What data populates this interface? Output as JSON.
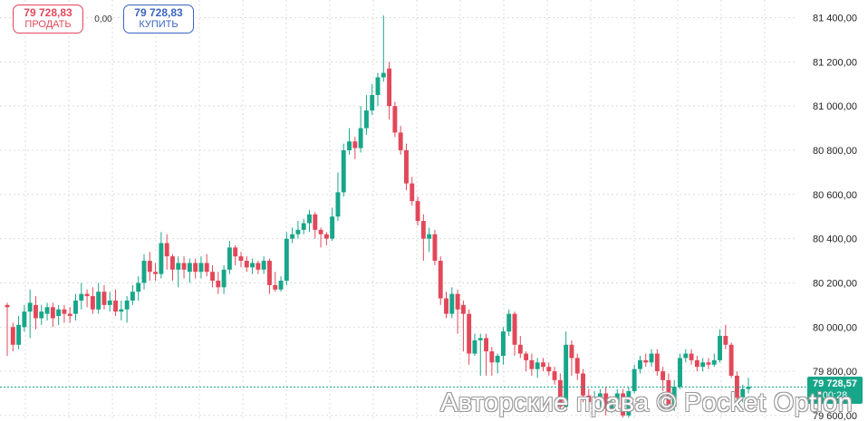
{
  "trade_panel": {
    "sell_price": "79 728,83",
    "sell_label": "ПРОДАТЬ",
    "spread": "0,00",
    "buy_price": "79 728,83",
    "buy_label": "КУПИТЬ"
  },
  "current_price": {
    "value": "79 728,57",
    "timer": "00:28"
  },
  "watermark": "Авторские права © Pocket Option",
  "colors": {
    "up": "#17a689",
    "down": "#e2485a",
    "grid": "#dcdcdc",
    "sell": "#e2485a",
    "buy": "#3a64c2"
  },
  "chart_data": {
    "type": "candlestick",
    "y_ticks": [
      "81 400,00",
      "81 200,00",
      "81 000,00",
      "80 800,00",
      "80 600,00",
      "80 400,00",
      "80 200,00",
      "80 000,00",
      "79 800,00",
      "79 600,00"
    ],
    "y_tick_values": [
      81400,
      81200,
      81000,
      80800,
      80600,
      80400,
      80200,
      80000,
      79800,
      79600
    ],
    "ylim": [
      79575,
      81480
    ],
    "grid": true,
    "current_price": 79728.57,
    "candles": [
      [
        80100,
        80090,
        80110,
        79870
      ],
      [
        80000,
        79920,
        80020,
        79890
      ],
      [
        79920,
        80010,
        80050,
        79900
      ],
      [
        80000,
        80070,
        80100,
        79980
      ],
      [
        80070,
        80110,
        80170,
        79950
      ],
      [
        80100,
        80040,
        80140,
        79990
      ],
      [
        80040,
        80070,
        80100,
        80010
      ],
      [
        80060,
        80090,
        80110,
        80030
      ],
      [
        80090,
        80040,
        80110,
        80000
      ],
      [
        80050,
        80080,
        80100,
        80010
      ],
      [
        80080,
        80060,
        80100,
        80020
      ],
      [
        80060,
        80050,
        80090,
        80020
      ],
      [
        80060,
        80120,
        80150,
        80030
      ],
      [
        80120,
        80150,
        80200,
        80080
      ],
      [
        80150,
        80140,
        80170,
        80090
      ],
      [
        80140,
        80080,
        80180,
        80060
      ],
      [
        80080,
        80160,
        80200,
        80060
      ],
      [
        80160,
        80100,
        80190,
        80080
      ],
      [
        80100,
        80120,
        80160,
        80070
      ],
      [
        80120,
        80070,
        80170,
        80050
      ],
      [
        80070,
        80080,
        80120,
        80030
      ],
      [
        80080,
        80120,
        80140,
        80020
      ],
      [
        80120,
        80160,
        80190,
        80100
      ],
      [
        80160,
        80200,
        80230,
        80120
      ],
      [
        80200,
        80300,
        80330,
        80170
      ],
      [
        80300,
        80250,
        80340,
        80210
      ],
      [
        80250,
        80240,
        80290,
        80210
      ],
      [
        80240,
        80380,
        80430,
        80220
      ],
      [
        80380,
        80320,
        80420,
        80260
      ],
      [
        80320,
        80260,
        80330,
        80210
      ],
      [
        80260,
        80290,
        80320,
        80180
      ],
      [
        80290,
        80260,
        80320,
        80220
      ],
      [
        80250,
        80290,
        80310,
        80200
      ],
      [
        80290,
        80250,
        80310,
        80220
      ],
      [
        80250,
        80290,
        80320,
        80220
      ],
      [
        80290,
        80250,
        80330,
        80230
      ],
      [
        80250,
        80210,
        80280,
        80180
      ],
      [
        80210,
        80180,
        80250,
        80150
      ],
      [
        80180,
        80260,
        80280,
        80150
      ],
      [
        80260,
        80360,
        80390,
        80240
      ],
      [
        80360,
        80320,
        80370,
        80280
      ],
      [
        80320,
        80300,
        80340,
        80270
      ],
      [
        80300,
        80270,
        80320,
        80250
      ],
      [
        80270,
        80290,
        80310,
        80240
      ],
      [
        80290,
        80260,
        80300,
        80240
      ],
      [
        80260,
        80300,
        80320,
        80240
      ],
      [
        80300,
        80190,
        80310,
        80150
      ],
      [
        80190,
        80170,
        80250,
        80160
      ],
      [
        80170,
        80210,
        80230,
        80160
      ],
      [
        80210,
        80400,
        80430,
        80190
      ],
      [
        80400,
        80420,
        80450,
        80380
      ],
      [
        80420,
        80440,
        80480,
        80400
      ],
      [
        80440,
        80470,
        80490,
        80420
      ],
      [
        80470,
        80510,
        80530,
        80430
      ],
      [
        80510,
        80440,
        80520,
        80400
      ],
      [
        80440,
        80420,
        80450,
        80360
      ],
      [
        80420,
        80400,
        80430,
        80370
      ],
      [
        80400,
        80500,
        80540,
        80390
      ],
      [
        80500,
        80610,
        80700,
        80480
      ],
      [
        80610,
        80800,
        80830,
        80590
      ],
      [
        80800,
        80840,
        80900,
        80780
      ],
      [
        80840,
        80810,
        80860,
        80760
      ],
      [
        80810,
        80900,
        81000,
        80790
      ],
      [
        80900,
        80980,
        81050,
        80870
      ],
      [
        80980,
        81050,
        81100,
        80960
      ],
      [
        81050,
        81130,
        81150,
        81000
      ],
      [
        81130,
        81150,
        81410,
        81110
      ],
      [
        81170,
        81000,
        81200,
        80940
      ],
      [
        81000,
        80880,
        81020,
        80860
      ],
      [
        80880,
        80800,
        80910,
        80780
      ],
      [
        80800,
        80650,
        80830,
        80620
      ],
      [
        80650,
        80570,
        80680,
        80550
      ],
      [
        80570,
        80480,
        80590,
        80460
      ],
      [
        80480,
        80400,
        80510,
        80300
      ],
      [
        80400,
        80420,
        80450,
        80340
      ],
      [
        80420,
        80300,
        80440,
        80280
      ],
      [
        80300,
        80130,
        80320,
        80100
      ],
      [
        80130,
        80060,
        80160,
        80040
      ],
      [
        80060,
        80150,
        80180,
        80040
      ],
      [
        80150,
        80080,
        80170,
        79970
      ],
      [
        80100,
        80060,
        80120,
        79890
      ],
      [
        80060,
        79880,
        80080,
        79830
      ],
      [
        79880,
        79940,
        79970,
        79870
      ],
      [
        79940,
        79950,
        79970,
        79780
      ],
      [
        79950,
        79890,
        79970,
        79780
      ],
      [
        79890,
        79840,
        79910,
        79780
      ],
      [
        79840,
        79870,
        79880,
        79790
      ],
      [
        79870,
        79980,
        80000,
        79830
      ],
      [
        79980,
        80060,
        80080,
        79960
      ],
      [
        80060,
        79920,
        80070,
        79870
      ],
      [
        79920,
        79880,
        79960,
        79860
      ],
      [
        79880,
        79850,
        79890,
        79800
      ],
      [
        79850,
        79810,
        79880,
        79780
      ],
      [
        79810,
        79840,
        79860,
        79770
      ],
      [
        79840,
        79820,
        79860,
        79800
      ],
      [
        79820,
        79800,
        79840,
        79780
      ],
      [
        79800,
        79760,
        79820,
        79740
      ],
      [
        79760,
        79640,
        79790,
        79620
      ],
      [
        79640,
        79920,
        79980,
        79620
      ],
      [
        79920,
        79860,
        79940,
        79780
      ],
      [
        79860,
        79790,
        79880,
        79760
      ],
      [
        79790,
        79690,
        79810,
        79660
      ],
      [
        79690,
        79660,
        79720,
        79630
      ],
      [
        79660,
        79680,
        79710,
        79620
      ],
      [
        79680,
        79700,
        79720,
        79640
      ],
      [
        79700,
        79630,
        79730,
        79600
      ],
      [
        79630,
        79650,
        79680,
        79610
      ],
      [
        79650,
        79700,
        79720,
        79630
      ],
      [
        79700,
        79600,
        79720,
        79590
      ],
      [
        79600,
        79710,
        79730,
        79590
      ],
      [
        79710,
        79810,
        79830,
        79700
      ],
      [
        79810,
        79850,
        79870,
        79790
      ],
      [
        79850,
        79840,
        79880,
        79820
      ],
      [
        79840,
        79880,
        79900,
        79820
      ],
      [
        79880,
        79800,
        79900,
        79780
      ],
      [
        79800,
        79760,
        79820,
        79710
      ],
      [
        79760,
        79640,
        79790,
        79620
      ],
      [
        79640,
        79730,
        79760,
        79620
      ],
      [
        79730,
        79860,
        79880,
        79720
      ],
      [
        79860,
        79880,
        79900,
        79840
      ],
      [
        79880,
        79850,
        79900,
        79830
      ],
      [
        79850,
        79820,
        79870,
        79800
      ],
      [
        79820,
        79840,
        79860,
        79800
      ],
      [
        79840,
        79830,
        79860,
        79810
      ],
      [
        79830,
        79850,
        79880,
        79820
      ],
      [
        79850,
        79960,
        79990,
        79840
      ],
      [
        79960,
        79920,
        80010,
        79900
      ],
      [
        79920,
        79780,
        79930,
        79770
      ],
      [
        79780,
        79680,
        79800,
        79660
      ],
      [
        79680,
        79720,
        79740,
        79660
      ],
      [
        79720,
        79730,
        79770,
        79700
      ]
    ]
  }
}
